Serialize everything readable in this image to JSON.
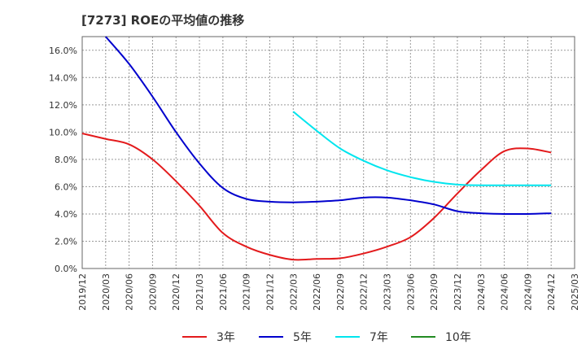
{
  "chart_data": {
    "type": "line",
    "title": "[7273]  ROEの平均値の推移",
    "xlabel": "",
    "ylabel": "",
    "grid": true,
    "legend_position": "bottom",
    "ylim": [
      0,
      17
    ],
    "y_ticks": [
      "0.0%",
      "2.0%",
      "4.0%",
      "6.0%",
      "8.0%",
      "10.0%",
      "12.0%",
      "14.0%",
      "16.0%"
    ],
    "y_tick_values": [
      0,
      2,
      4,
      6,
      8,
      10,
      12,
      14,
      16
    ],
    "categories": [
      "2019/12",
      "2020/03",
      "2020/06",
      "2020/09",
      "2020/12",
      "2021/03",
      "2021/06",
      "2021/09",
      "2021/12",
      "2022/03",
      "2022/06",
      "2022/09",
      "2022/12",
      "2023/03",
      "2023/06",
      "2023/09",
      "2023/12",
      "2024/03",
      "2024/06",
      "2024/09",
      "2024/12",
      "2025/03"
    ],
    "series": [
      {
        "name": "3年",
        "color": "#e31a1c",
        "values": [
          9.9,
          9.5,
          9.1,
          8.0,
          6.4,
          4.6,
          2.6,
          1.6,
          1.0,
          0.65,
          0.7,
          0.75,
          1.1,
          1.6,
          2.3,
          3.7,
          5.5,
          7.2,
          8.6,
          8.8,
          8.5,
          null
        ]
      },
      {
        "name": "5年",
        "color": "#0000cd",
        "values": [
          null,
          17.0,
          15.0,
          12.6,
          10.0,
          7.7,
          5.9,
          5.1,
          4.9,
          4.85,
          4.9,
          5.0,
          5.2,
          5.2,
          5.0,
          4.7,
          4.2,
          4.05,
          4.0,
          4.0,
          4.05,
          null
        ]
      },
      {
        "name": "7年",
        "color": "#00e5ee",
        "values": [
          null,
          null,
          null,
          null,
          null,
          null,
          null,
          null,
          null,
          11.5,
          10.1,
          8.8,
          7.9,
          7.2,
          6.7,
          6.35,
          6.15,
          6.1,
          6.1,
          6.1,
          6.1,
          null
        ]
      },
      {
        "name": "10年",
        "color": "#228b22",
        "values": [
          null,
          null,
          null,
          null,
          null,
          null,
          null,
          null,
          null,
          null,
          null,
          null,
          null,
          null,
          null,
          null,
          null,
          null,
          null,
          null,
          null,
          null
        ]
      }
    ]
  }
}
